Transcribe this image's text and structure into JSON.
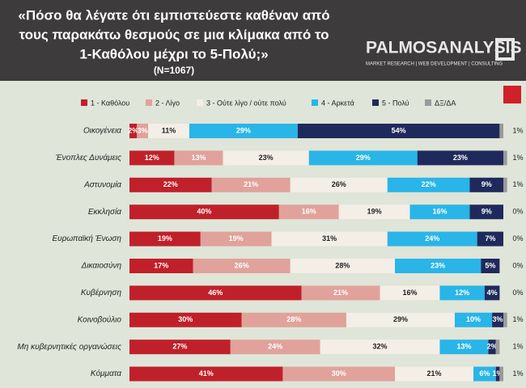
{
  "chart_data": {
    "type": "stacked-bar-horizontal",
    "title": [
      "«Πόσο θα λέγατε ότι εμπιστεύεστε καθέναν από",
      "τους παρακάτω θεσμούς σε μια κλίμακα από το",
      "1-Καθόλου μέχρι το 5-Πολύ;»"
    ],
    "subtitle": "(N=1067)",
    "logo": {
      "name": "PALMOSANALYSIS",
      "tagline": "MARKET RESEARCH | WEB DEVELOPMENT | CONSULTING"
    },
    "categories": [
      "Οικογένεια",
      "Ένοπλες Δυνάμεις",
      "Αστυνομία",
      "Εκκλησία",
      "Ευρωπαϊκή Ένωση",
      "Δικαιοσύνη",
      "Κυβέρνηση",
      "Κοινοβούλιο",
      "Μη κυβερνητικές οργανώσεις",
      "Κόμματα"
    ],
    "series": [
      {
        "name": "1 - Καθόλου",
        "color": "#c0202a",
        "values": [
          2,
          12,
          22,
          40,
          19,
          17,
          46,
          30,
          27,
          41
        ],
        "value_labels": [
          "2%",
          "12%",
          "22%",
          "40%",
          "19%",
          "17%",
          "46%",
          "30%",
          "27%",
          "41%"
        ]
      },
      {
        "name": "2 - Λίγο",
        "color": "#e0a29b",
        "values": [
          3,
          13,
          21,
          16,
          19,
          26,
          21,
          28,
          24,
          30
        ],
        "value_labels": [
          "3%",
          "13%",
          "21%",
          "16%",
          "19%",
          "26%",
          "21%",
          "28%",
          "24%",
          "30%"
        ]
      },
      {
        "name": "3 - Ούτε λίγο / ούτε πολύ",
        "color": "#f3eee6",
        "values": [
          11,
          23,
          26,
          19,
          31,
          28,
          16,
          29,
          32,
          21
        ],
        "value_labels": [
          "11%",
          "23%",
          "26%",
          "19%",
          "31%",
          "28%",
          "16%",
          "29%",
          "32%",
          "21%"
        ]
      },
      {
        "name": "4 - Αρκετά",
        "color": "#29b5e8",
        "values": [
          29,
          29,
          22,
          16,
          24,
          23,
          12,
          10,
          13,
          6
        ],
        "value_labels": [
          "29%",
          "29%",
          "22%",
          "16%",
          "24%",
          "23%",
          "12%",
          "10%",
          "13%",
          "6%"
        ]
      },
      {
        "name": "5 - Πολύ",
        "color": "#1f2a5c",
        "values": [
          54,
          23,
          9,
          9,
          7,
          5,
          4,
          3,
          2,
          1
        ],
        "value_labels": [
          "54%",
          "23%",
          "9%",
          "9%",
          "7%",
          "5%",
          "4%",
          "3%",
          "2%",
          "1%"
        ]
      },
      {
        "name": "ΔΞ/ΔΑ",
        "color": "#9a9a9a",
        "values": [
          1,
          1,
          1,
          0,
          0,
          0,
          0,
          1,
          1,
          1
        ],
        "value_labels": [
          "1%",
          "1%",
          "1%",
          "0%",
          "0%",
          "0%",
          "0%",
          "1%",
          "1%",
          "1%"
        ]
      }
    ]
  }
}
